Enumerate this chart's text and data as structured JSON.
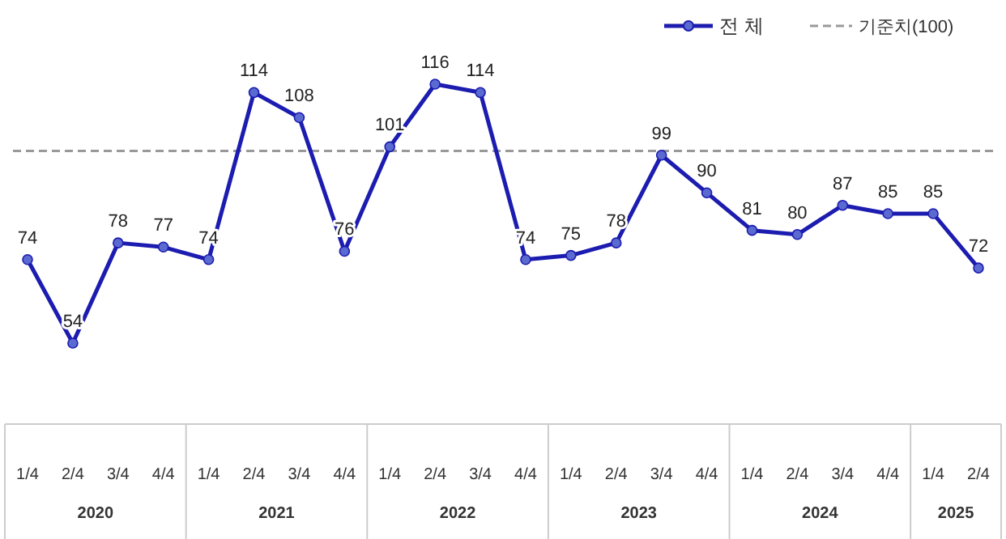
{
  "chart_data": {
    "type": "line",
    "categories": [
      "1/4",
      "2/4",
      "3/4",
      "4/4",
      "1/4",
      "2/4",
      "3/4",
      "4/4",
      "1/4",
      "2/4",
      "3/4",
      "4/4",
      "1/4",
      "2/4",
      "3/4",
      "4/4",
      "1/4",
      "2/4",
      "3/4",
      "4/4",
      "1/4",
      "2/4"
    ],
    "series": [
      {
        "name": "전 체",
        "color": "#1c1cb0",
        "values": [
          74,
          54,
          78,
          77,
          74,
          114,
          108,
          76,
          101,
          116,
          114,
          74,
          75,
          78,
          99,
          90,
          81,
          80,
          87,
          85,
          85,
          72
        ]
      }
    ],
    "ref_lines": [
      {
        "axis": "y",
        "value": 100,
        "label": "기준치(100)",
        "color": "#999999",
        "line_style": "dashed"
      }
    ],
    "annotations": [
      "2020",
      "2021",
      "2022",
      "2023",
      "2024",
      "2025"
    ],
    "data_labels": true,
    "marker": "circle",
    "legend": "top right"
  }
}
